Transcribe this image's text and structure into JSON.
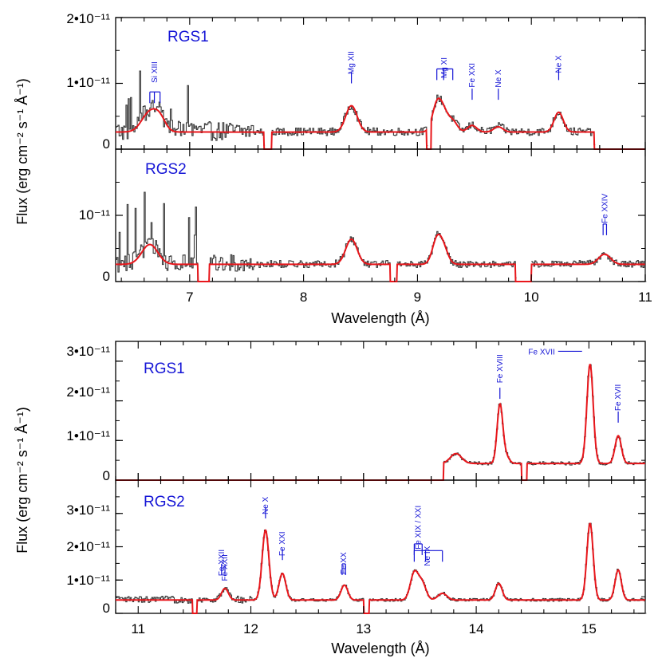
{
  "figure": {
    "top": {
      "xlabel": "Wavelength (Å)",
      "ylabel": "Flux (erg cm⁻² s⁻¹ Å⁻¹)",
      "panels": [
        {
          "label": "RGS1",
          "ytick_labels": [
            "2•10⁻¹¹",
            "1•10⁻¹¹",
            "0"
          ]
        },
        {
          "label": "RGS2",
          "ytick_labels": [
            "10⁻¹¹",
            "0"
          ]
        }
      ]
    },
    "bottom": {
      "xlabel": "Wavelength (Å)",
      "ylabel": "Flux (erg cm⁻² s⁻¹ Å⁻¹)",
      "panels": [
        {
          "label": "RGS1",
          "ytick_labels": [
            "3•10⁻¹¹",
            "2•10⁻¹¹",
            "1•10⁻¹¹",
            "0"
          ]
        },
        {
          "label": "RGS2",
          "ytick_labels": [
            "3•10⁻¹¹",
            "2•10⁻¹¹",
            "1•10⁻¹¹",
            "0"
          ]
        }
      ]
    }
  },
  "chart_data": [
    {
      "type": "line",
      "xlabel": "Wavelength (Å)",
      "ylabel": "Flux (erg cm⁻² s⁻¹ Å⁻¹)",
      "xlim": [
        6.35,
        11.0
      ],
      "xticks": [
        7,
        8,
        9,
        10,
        11
      ],
      "colors": {
        "data": "#3a3a3a",
        "model": "#e8161b",
        "labels": "#1515d6"
      },
      "panels": [
        {
          "label": "RGS1",
          "ylim": [
            0,
            2e-11
          ],
          "yticks": [
            0,
            1e-11,
            2e-11
          ],
          "coverage": [
            [
              6.35,
              7.65
            ],
            [
              7.72,
              9.08
            ],
            [
              9.12,
              10.55
            ]
          ],
          "continuum": 2.6e-12,
          "noise": 1.2e-12,
          "lines": [
            {
              "x": 6.65,
              "amp": 3e-12,
              "w": 0.07
            },
            {
              "x": 6.74,
              "amp": 1.6e-12,
              "w": 0.05
            },
            {
              "x": 8.42,
              "amp": 4e-12,
              "w": 0.05
            },
            {
              "x": 9.17,
              "amp": 4e-12,
              "w": 0.04
            },
            {
              "x": 9.23,
              "amp": 2.6e-12,
              "w": 0.04
            },
            {
              "x": 9.31,
              "amp": 1.6e-12,
              "w": 0.04
            },
            {
              "x": 9.48,
              "amp": 1e-12,
              "w": 0.04
            },
            {
              "x": 9.71,
              "amp": 8e-13,
              "w": 0.04
            },
            {
              "x": 10.24,
              "amp": 3e-12,
              "w": 0.04
            }
          ],
          "annotations": [
            {
              "text": "Si XIII",
              "x": [
                6.65,
                6.69,
                6.74
              ],
              "tick": 7e-12,
              "label_at": 1.25e-11
            },
            {
              "text": "Mg XII",
              "x": [
                8.42
              ],
              "tick": 1e-11,
              "label_at": 1.38e-11
            },
            {
              "text": "Mg XI",
              "x": [
                9.17,
                9.23,
                9.31
              ],
              "tick": 1.05e-11,
              "label_at": 1.32e-11
            },
            {
              "text": "Fe XXI",
              "x": [
                9.48
              ],
              "tick": 7.5e-12,
              "label_at": 1.18e-11
            },
            {
              "text": "Ne X",
              "x": [
                9.71
              ],
              "tick": 7.5e-12,
              "label_at": 1.18e-11
            },
            {
              "text": "Ne X",
              "x": [
                10.24
              ],
              "tick": 1.05e-11,
              "label_at": 1.4e-11
            }
          ]
        },
        {
          "label": "RGS2",
          "ylim": [
            0,
            2e-11
          ],
          "yticks": [
            0,
            1e-11
          ],
          "coverage": [
            [
              6.35,
              7.07
            ],
            [
              7.17,
              8.76
            ],
            [
              8.82,
              9.86
            ],
            [
              10.0,
              11.0
            ]
          ],
          "continuum": 2.6e-12,
          "noise": 1.1e-12,
          "lines": [
            {
              "x": 6.65,
              "amp": 3e-12,
              "w": 0.07
            },
            {
              "x": 8.42,
              "amp": 3.8e-12,
              "w": 0.05
            },
            {
              "x": 9.17,
              "amp": 3.6e-12,
              "w": 0.04
            },
            {
              "x": 9.23,
              "amp": 2.2e-12,
              "w": 0.04
            },
            {
              "x": 10.63,
              "amp": 9e-13,
              "w": 0.05
            },
            {
              "x": 10.66,
              "amp": 7e-13,
              "w": 0.05
            }
          ],
          "annotations": [
            {
              "text": "Fe XXIV",
              "x": [
                10.63,
                10.66
              ],
              "tick": 7e-12,
              "label_at": 1.12e-11
            }
          ]
        }
      ]
    },
    {
      "type": "line",
      "xlabel": "Wavelength (Å)",
      "ylabel": "Flux (erg cm⁻² s⁻¹ Å⁻¹)",
      "xlim": [
        10.8,
        15.5
      ],
      "xticks": [
        11,
        12,
        13,
        14,
        15
      ],
      "colors": {
        "data": "#3a3a3a",
        "model": "#e8161b",
        "labels": "#1515d6"
      },
      "panels": [
        {
          "label": "RGS1",
          "ylim": [
            0,
            3.5e-11
          ],
          "yticks": [
            0,
            1e-11,
            2e-11,
            3e-11
          ],
          "coverage": [
            [
              13.71,
              14.4
            ],
            [
              14.45,
              15.5
            ]
          ],
          "continuum": 4.2e-12,
          "noise": 9e-13,
          "lines": [
            {
              "x": 13.82,
              "amp": 2.5e-12,
              "w": 0.05
            },
            {
              "x": 14.21,
              "amp": 1.45e-11,
              "w": 0.025
            },
            {
              "x": 14.26,
              "amp": 2e-12,
              "w": 0.03
            },
            {
              "x": 15.01,
              "amp": 2.5e-11,
              "w": 0.028
            },
            {
              "x": 15.26,
              "amp": 7e-12,
              "w": 0.028
            }
          ],
          "annotations": [
            {
              "text": "Fe XVIII",
              "x": [
                14.21
              ],
              "tick": 2.05e-11,
              "label_at": 2.85e-11
            },
            {
              "text": "Fe XVII",
              "x": [
                15.01
              ],
              "tick": 3.25e-11,
              "label_at": 3.25e-11,
              "horizontal": true
            },
            {
              "text": "Fe XVII",
              "x": [
                15.26
              ],
              "tick": 1.45e-11,
              "label_at": 2.15e-11
            }
          ]
        },
        {
          "label": "RGS2",
          "ylim": [
            0,
            4e-11
          ],
          "yticks": [
            0,
            1e-11,
            2e-11,
            3e-11
          ],
          "coverage": [
            [
              10.8,
              11.48
            ],
            [
              11.52,
              13.0
            ],
            [
              13.05,
              15.5
            ]
          ],
          "continuum": 4e-12,
          "noise": 9e-13,
          "lines": [
            {
              "x": 11.77,
              "amp": 3.5e-12,
              "w": 0.03
            },
            {
              "x": 12.13,
              "amp": 2.1e-11,
              "w": 0.03
            },
            {
              "x": 12.28,
              "amp": 8e-12,
              "w": 0.03
            },
            {
              "x": 12.83,
              "amp": 4.5e-12,
              "w": 0.03
            },
            {
              "x": 13.45,
              "amp": 8e-12,
              "w": 0.035
            },
            {
              "x": 13.52,
              "amp": 5e-12,
              "w": 0.035
            },
            {
              "x": 13.7,
              "amp": 2e-12,
              "w": 0.04
            },
            {
              "x": 14.2,
              "amp": 5e-12,
              "w": 0.03
            },
            {
              "x": 15.01,
              "amp": 2.3e-11,
              "w": 0.028
            },
            {
              "x": 15.26,
              "amp": 9e-12,
              "w": 0.028
            }
          ],
          "annotations": [
            {
              "text": "Fe XXII",
              "x": [
                11.74
              ],
              "tick": 1.15e-11,
              "label_at": 1.6e-11
            },
            {
              "text": "Fe XXII",
              "x": [
                11.77
              ],
              "tick": 1.15e-11,
              "label_at": 1.45e-11
            },
            {
              "text": "Ne X",
              "x": [
                12.13
              ],
              "tick": 2.85e-11,
              "label_at": 3.45e-11
            },
            {
              "text": "Fe XXI",
              "x": [
                12.28
              ],
              "tick": 1.6e-11,
              "label_at": 2.2e-11
            },
            {
              "text": "Fe XX",
              "x": [
                12.81,
                12.84
              ],
              "tick": 1.15e-11,
              "label_at": 1.65e-11
            },
            {
              "text": "Fe XIX / XXI",
              "x": [
                13.45,
                13.52
              ],
              "tick": 1.75e-11,
              "label_at": 2.4e-11
            },
            {
              "text": "Ne IX",
              "x": [
                13.45,
                13.55,
                13.7
              ],
              "tick": 1.55e-11,
              "label_at": 1.9e-11
            }
          ]
        }
      ]
    }
  ]
}
